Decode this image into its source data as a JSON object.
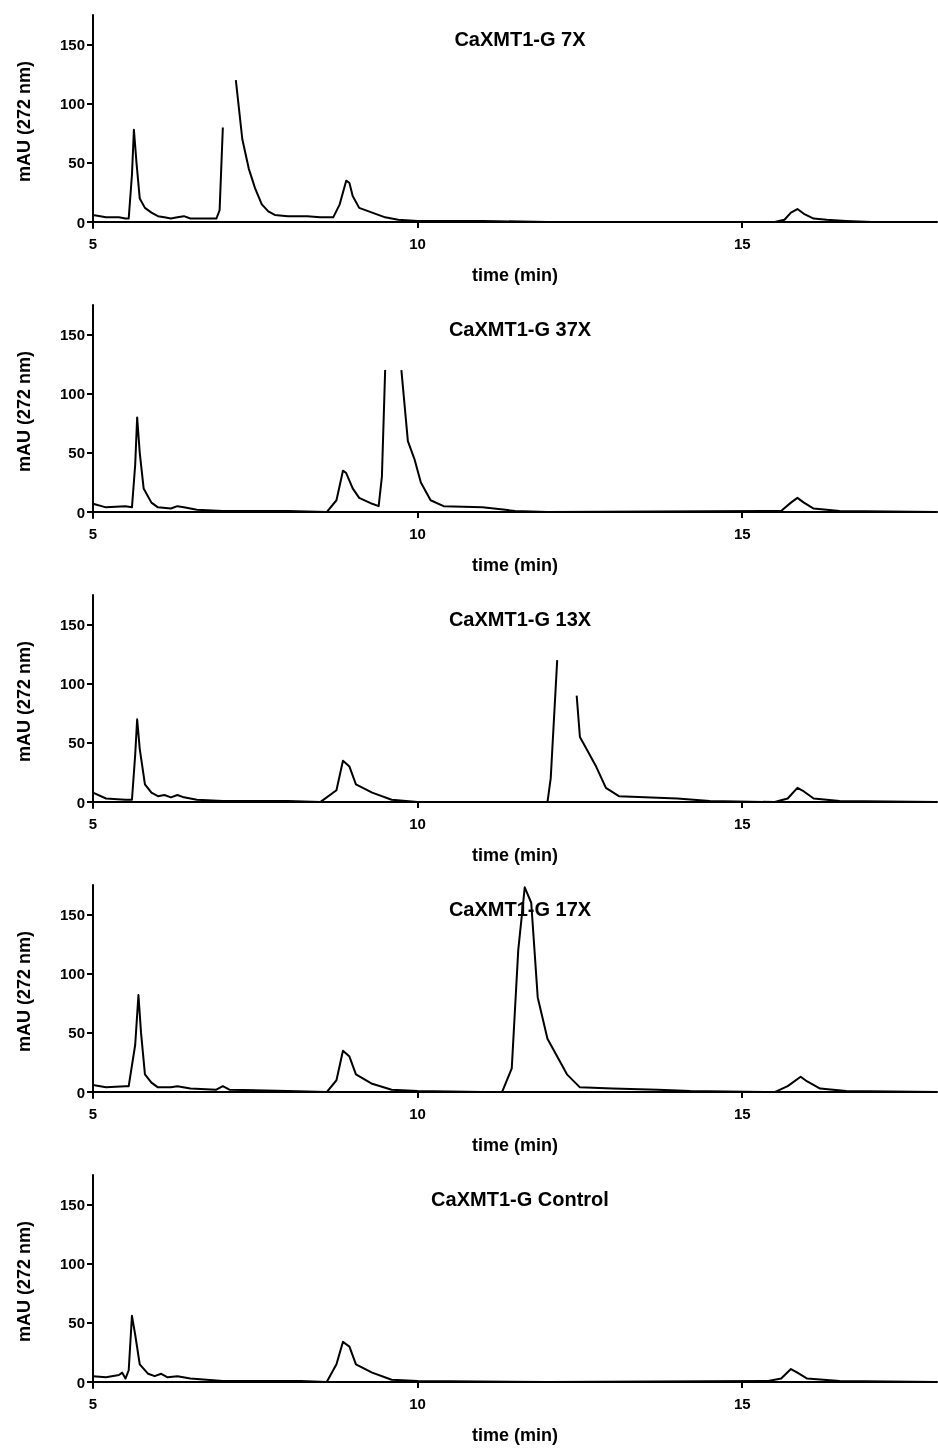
{
  "chart_data": [
    {
      "type": "line",
      "title": "CaXMT1-G 7X",
      "xlabel": "time (min)",
      "ylabel": "mAU (272 nm)",
      "xlim": [
        5,
        18
      ],
      "ylim": [
        -5,
        175
      ],
      "xticks": [
        5,
        10,
        15
      ],
      "yticks": [
        0,
        50,
        100,
        150
      ],
      "color": "#000000",
      "x": [
        5.0,
        5.2,
        5.4,
        5.5,
        5.55,
        5.6,
        5.63,
        5.67,
        5.72,
        5.8,
        5.9,
        6.0,
        6.1,
        6.2,
        6.3,
        6.4,
        6.5,
        6.7,
        6.9,
        6.95,
        7.0,
        7.05,
        7.15,
        7.2,
        7.3,
        7.4,
        7.5,
        7.6,
        7.7,
        7.8,
        8.0,
        8.3,
        8.5,
        8.7,
        8.8,
        8.9,
        8.95,
        9.0,
        9.1,
        9.3,
        9.5,
        9.7,
        10.0,
        11.0,
        12.0,
        13.0,
        14.0,
        15.5,
        15.65,
        15.75,
        15.85,
        15.95,
        16.1,
        16.3,
        16.6,
        17.0,
        18.0
      ],
      "values": [
        6,
        4,
        4,
        3,
        3,
        40,
        78,
        50,
        20,
        12,
        8,
        5,
        4,
        3,
        4,
        5,
        3,
        3,
        3,
        10,
        80,
        null,
        null,
        120,
        70,
        45,
        28,
        15,
        9,
        6,
        5,
        5,
        4,
        4,
        15,
        35,
        33,
        22,
        12,
        8,
        4,
        2,
        1,
        1,
        0,
        0,
        0,
        0,
        2,
        8,
        11,
        7,
        3,
        2,
        1,
        0,
        0
      ]
    },
    {
      "type": "line",
      "title": "CaXMT1-G 37X",
      "xlabel": "time (min)",
      "ylabel": "mAU (272 nm)",
      "xlim": [
        5,
        18
      ],
      "ylim": [
        -5,
        175
      ],
      "xticks": [
        5,
        10,
        15
      ],
      "yticks": [
        0,
        50,
        100,
        150
      ],
      "color": "#000000",
      "x": [
        5.0,
        5.2,
        5.5,
        5.6,
        5.65,
        5.68,
        5.72,
        5.78,
        5.9,
        6.0,
        6.2,
        6.3,
        6.4,
        6.6,
        7.0,
        8.0,
        8.6,
        8.75,
        8.85,
        8.9,
        9.0,
        9.1,
        9.3,
        9.4,
        9.45,
        9.5,
        9.55,
        9.7,
        9.75,
        9.85,
        9.95,
        10.05,
        10.2,
        10.4,
        11.0,
        11.5,
        12.0,
        15.6,
        15.75,
        15.85,
        15.95,
        16.1,
        16.5,
        18.0
      ],
      "values": [
        7,
        4,
        5,
        4,
        40,
        80,
        50,
        20,
        8,
        4,
        3,
        5,
        4,
        2,
        1,
        1,
        0,
        10,
        35,
        33,
        20,
        12,
        7,
        5,
        30,
        120,
        null,
        null,
        120,
        60,
        45,
        25,
        10,
        5,
        4,
        1,
        0,
        1,
        8,
        12,
        8,
        3,
        1,
        0
      ]
    },
    {
      "type": "line",
      "title": "CaXMT1-G 13X",
      "xlabel": "time (min)",
      "ylabel": "mAU (272 nm)",
      "xlim": [
        5,
        18
      ],
      "ylim": [
        -5,
        175
      ],
      "xticks": [
        5,
        10,
        15
      ],
      "yticks": [
        0,
        50,
        100,
        150
      ],
      "color": "#000000",
      "x": [
        5.0,
        5.2,
        5.5,
        5.6,
        5.65,
        5.68,
        5.72,
        5.8,
        5.9,
        6.0,
        6.1,
        6.2,
        6.3,
        6.4,
        6.6,
        7.0,
        8.0,
        8.5,
        8.75,
        8.85,
        8.95,
        9.05,
        9.3,
        9.6,
        10.0,
        12.0,
        12.05,
        12.15,
        12.2,
        12.35,
        12.45,
        12.5,
        12.6,
        12.75,
        12.9,
        13.1,
        14.0,
        14.5,
        15.5,
        15.7,
        15.85,
        15.95,
        16.1,
        16.5,
        18.0
      ],
      "values": [
        8,
        3,
        2,
        2,
        40,
        70,
        45,
        15,
        8,
        5,
        6,
        4,
        6,
        4,
        2,
        1,
        1,
        0,
        10,
        35,
        30,
        15,
        8,
        2,
        0,
        0,
        20,
        120,
        null,
        null,
        90,
        55,
        45,
        30,
        12,
        5,
        3,
        1,
        0,
        3,
        12,
        9,
        3,
        1,
        0
      ]
    },
    {
      "type": "line",
      "title": "CaXMT1-G 17X",
      "xlabel": "time (min)",
      "ylabel": "mAU (272 nm)",
      "xlim": [
        5,
        18
      ],
      "ylim": [
        -5,
        175
      ],
      "xticks": [
        5,
        10,
        15
      ],
      "yticks": [
        0,
        50,
        100,
        150
      ],
      "color": "#000000",
      "x": [
        5.0,
        5.2,
        5.5,
        5.55,
        5.65,
        5.7,
        5.74,
        5.8,
        5.9,
        6.0,
        6.2,
        6.3,
        6.5,
        6.9,
        7.0,
        7.1,
        8.0,
        8.6,
        8.75,
        8.85,
        8.95,
        9.05,
        9.3,
        9.6,
        10.0,
        11.0,
        11.3,
        11.45,
        11.55,
        11.65,
        11.75,
        11.85,
        12.0,
        12.15,
        12.3,
        12.5,
        13.0,
        13.7,
        14.2,
        15.5,
        15.7,
        15.9,
        16.0,
        16.2,
        16.6,
        18.0
      ],
      "values": [
        6,
        4,
        5,
        5,
        40,
        82,
        50,
        15,
        8,
        4,
        4,
        5,
        3,
        2,
        5,
        2,
        1,
        0,
        10,
        35,
        30,
        15,
        7,
        2,
        1,
        0,
        0,
        20,
        120,
        173,
        160,
        80,
        45,
        30,
        15,
        4,
        3,
        2,
        1,
        0,
        5,
        13,
        9,
        3,
        1,
        0
      ]
    },
    {
      "type": "line",
      "title": "CaXMT1-G Control",
      "xlabel": "time (min)",
      "ylabel": "mAU (272 nm)",
      "xlim": [
        5,
        18
      ],
      "ylim": [
        -5,
        175
      ],
      "xticks": [
        5,
        10,
        15
      ],
      "yticks": [
        0,
        50,
        100,
        150
      ],
      "color": "#000000",
      "x": [
        5.0,
        5.2,
        5.4,
        5.45,
        5.5,
        5.55,
        5.6,
        5.65,
        5.72,
        5.85,
        5.95,
        6.05,
        6.15,
        6.3,
        6.5,
        7.0,
        8.2,
        8.6,
        8.75,
        8.85,
        8.95,
        9.05,
        9.3,
        9.6,
        10.0,
        12.0,
        15.4,
        15.6,
        15.75,
        15.85,
        16.0,
        16.5,
        18.0
      ],
      "values": [
        5,
        4,
        6,
        8,
        3,
        10,
        56,
        40,
        15,
        7,
        5,
        7,
        4,
        5,
        3,
        1,
        1,
        0,
        15,
        34,
        30,
        15,
        8,
        2,
        1,
        0,
        1,
        3,
        11,
        8,
        3,
        1,
        0
      ]
    }
  ]
}
